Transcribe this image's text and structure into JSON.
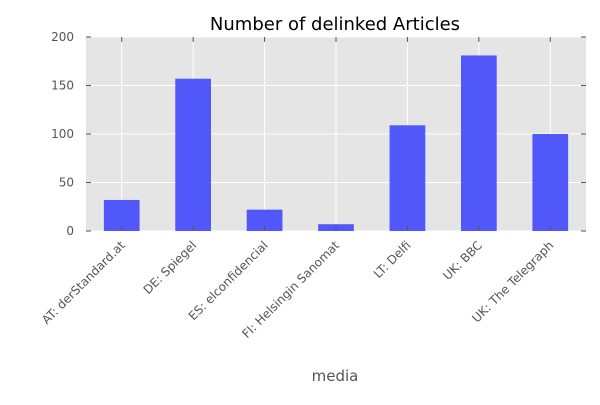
{
  "chart_data": {
    "type": "bar",
    "title": "Number of delinked Articles",
    "xlabel": "media",
    "ylabel": "",
    "categories": [
      "AT: derStandard.at",
      "DE: Spiegel",
      "ES: elconfidencial",
      "FI: Helsingin Sanomat",
      "LT: Delfi",
      "UK: BBC",
      "UK: The Telegraph"
    ],
    "values": [
      32,
      157,
      22,
      7,
      109,
      181,
      100
    ],
    "ylim": [
      0,
      200
    ],
    "yticks": [
      0,
      50,
      100,
      150,
      200
    ],
    "grid": true,
    "legend": "none",
    "colors": {
      "bar": "#5158fa",
      "plot_background": "#e5e5e5",
      "grid": "#ffffff",
      "tick_mark": "#555555"
    }
  }
}
